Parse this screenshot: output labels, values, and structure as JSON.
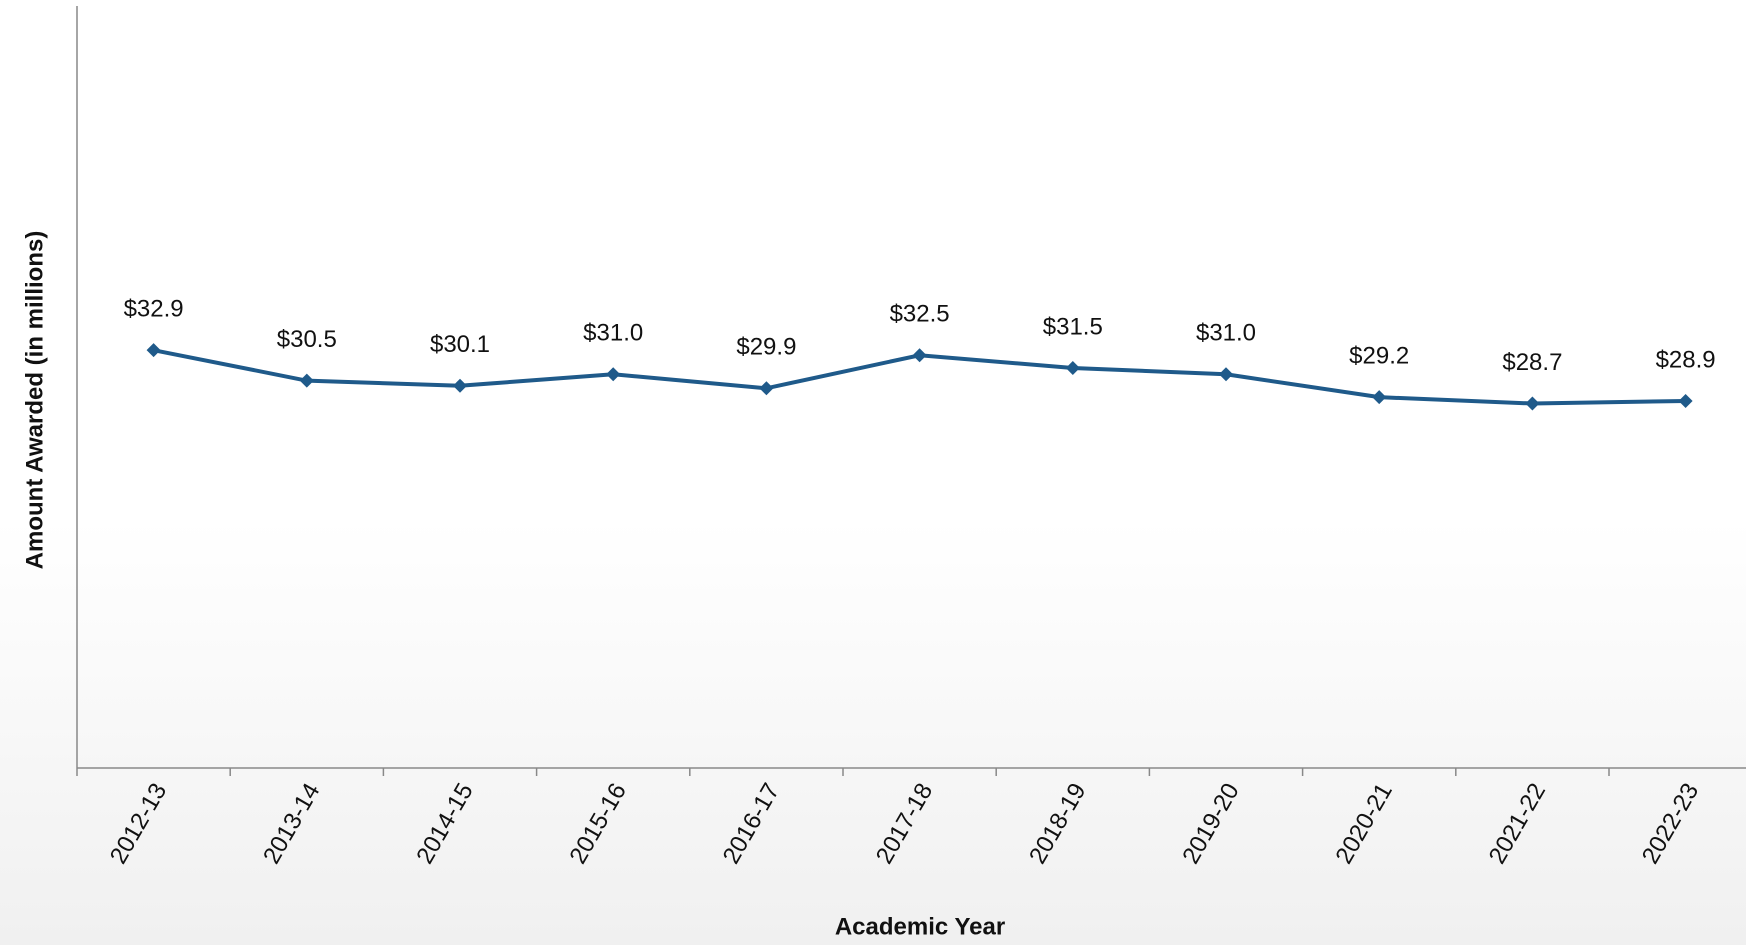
{
  "chart_data": {
    "type": "line",
    "x_label": "Academic Year",
    "y_label": "Amount Awarded (in millions)",
    "categories": [
      "2012-13",
      "2013-14",
      "2014-15",
      "2015-16",
      "2016-17",
      "2017-18",
      "2018-19",
      "2019-20",
      "2020-21",
      "2021-22",
      "2022-23"
    ],
    "series": [
      {
        "name": "Amount Awarded",
        "color": "#1f5a8a",
        "values": [
          32.9,
          30.5,
          30.1,
          31.0,
          29.9,
          32.5,
          31.5,
          31.0,
          29.2,
          28.7,
          28.9
        ],
        "value_labels": [
          "$32.9",
          "$30.5",
          "$30.1",
          "$31.0",
          "$29.9",
          "$32.5",
          "$31.5",
          "$31.0",
          "$29.2",
          "$28.7",
          "$28.9"
        ]
      }
    ],
    "ylim": [
      0,
      60
    ]
  }
}
